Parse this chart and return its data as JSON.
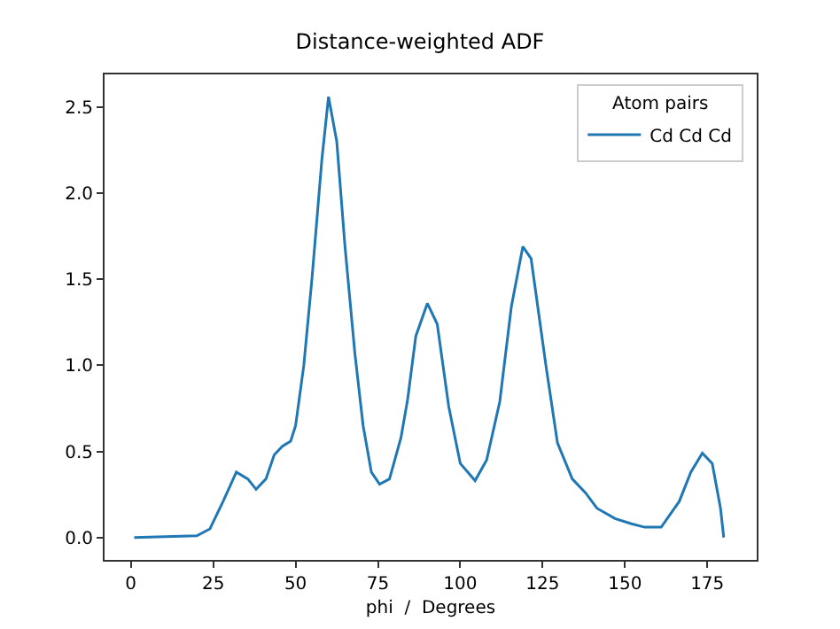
{
  "chart_data": {
    "type": "line",
    "title": "Distance-weighted ADF",
    "xlabel": "phi  /  Degrees",
    "legend_title": "Atom pairs",
    "legend": "top right",
    "grid": false,
    "marker": "none",
    "line_style": "solid",
    "xlim": [
      -8,
      190
    ],
    "xticks": [
      0,
      25,
      50,
      75,
      100,
      125,
      150,
      175
    ],
    "ylim": [
      -0.13,
      2.69
    ],
    "yticks": [
      {
        "value": 0,
        "label": "0.0"
      },
      {
        "value": 0.5,
        "label": "0.5"
      },
      {
        "value": 1,
        "label": "1.0"
      },
      {
        "value": 1.5,
        "label": "1.5"
      },
      {
        "value": 2,
        "label": "2.0"
      },
      {
        "value": 2.5,
        "label": "2.5"
      }
    ],
    "x": [
      1,
      20,
      24,
      28,
      32,
      35.5,
      38,
      41,
      43.5,
      46,
      48.5,
      50,
      52.5,
      55,
      58,
      60,
      62.5,
      65,
      68,
      70.5,
      73,
      75.5,
      78.5,
      82,
      84,
      86.5,
      90,
      93,
      96.5,
      100,
      104.5,
      108,
      112,
      115.5,
      119,
      121.5,
      126,
      129.5,
      134,
      138,
      141.5,
      147,
      152,
      156,
      161,
      166.5,
      170,
      173.5,
      176.5,
      179,
      180
    ],
    "series": [
      {
        "name": "Cd Cd Cd",
        "color": "#1f77b4",
        "values": [
          0,
          0.01,
          0.05,
          0.21,
          0.38,
          0.34,
          0.28,
          0.34,
          0.48,
          0.53,
          0.56,
          0.65,
          1.0,
          1.51,
          2.2,
          2.56,
          2.3,
          1.69,
          1.07,
          0.65,
          0.38,
          0.31,
          0.34,
          0.58,
          0.8,
          1.17,
          1.36,
          1.24,
          0.76,
          0.43,
          0.33,
          0.45,
          0.79,
          1.34,
          1.69,
          1.62,
          1.0,
          0.55,
          0.34,
          0.26,
          0.17,
          0.11,
          0.08,
          0.06,
          0.06,
          0.21,
          0.38,
          0.49,
          0.43,
          0.17,
          0
        ]
      }
    ]
  }
}
